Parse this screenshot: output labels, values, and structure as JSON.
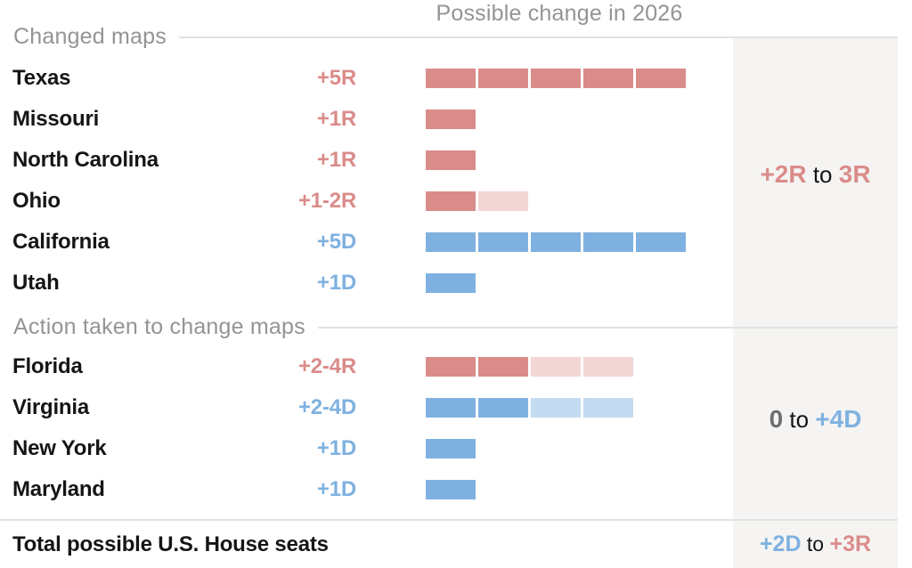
{
  "title": "Possible change in 2026",
  "colors": {
    "rep": "#da8c8a",
    "rep_light": "#f1d6d5",
    "dem": "#7fb1e0",
    "dem_light": "#c4dcf1",
    "header_gray": "#949494",
    "bold_gray": "#6f6f6f",
    "ink": "#151515",
    "panel_bg": "#f5f4f2",
    "rule": "#e2e2e2"
  },
  "chart_data": {
    "type": "bar",
    "title": "Possible change in 2026",
    "unit": "U.S. House seats",
    "legend_position": "none",
    "grid": false,
    "sections": [
      {
        "label": "Changed maps",
        "summary_parts": [
          {
            "text": "+2R",
            "style": "rep"
          },
          {
            "text": " to ",
            "style": "plain"
          },
          {
            "text": "3R",
            "style": "rep"
          }
        ],
        "rows": [
          {
            "state": "Texas",
            "value_label": "+5R",
            "party": "R",
            "min_seats": 5,
            "max_seats": 5,
            "solid_segments": 5,
            "light_segments": 0
          },
          {
            "state": "Missouri",
            "value_label": "+1R",
            "party": "R",
            "min_seats": 1,
            "max_seats": 1,
            "solid_segments": 1,
            "light_segments": 0
          },
          {
            "state": "North Carolina",
            "value_label": "+1R",
            "party": "R",
            "min_seats": 1,
            "max_seats": 1,
            "solid_segments": 1,
            "light_segments": 0
          },
          {
            "state": "Ohio",
            "value_label": "+1-2R",
            "party": "R",
            "min_seats": 1,
            "max_seats": 2,
            "solid_segments": 1,
            "light_segments": 1
          },
          {
            "state": "California",
            "value_label": "+5D",
            "party": "D",
            "min_seats": 5,
            "max_seats": 5,
            "solid_segments": 5,
            "light_segments": 0
          },
          {
            "state": "Utah",
            "value_label": "+1D",
            "party": "D",
            "min_seats": 1,
            "max_seats": 1,
            "solid_segments": 1,
            "light_segments": 0
          }
        ]
      },
      {
        "label": "Action taken to change maps",
        "summary_parts": [
          {
            "text": "0",
            "style": "gray"
          },
          {
            "text": " to ",
            "style": "plain"
          },
          {
            "text": "+4D",
            "style": "dem"
          }
        ],
        "rows": [
          {
            "state": "Florida",
            "value_label": "+2-4R",
            "party": "R",
            "min_seats": 2,
            "max_seats": 4,
            "solid_segments": 2,
            "light_segments": 2
          },
          {
            "state": "Virginia",
            "value_label": "+2-4D",
            "party": "D",
            "min_seats": 2,
            "max_seats": 4,
            "solid_segments": 2,
            "light_segments": 2
          },
          {
            "state": "New York",
            "value_label": "+1D",
            "party": "D",
            "min_seats": 1,
            "max_seats": 1,
            "solid_segments": 1,
            "light_segments": 0
          },
          {
            "state": "Maryland",
            "value_label": "+1D",
            "party": "D",
            "min_seats": 1,
            "max_seats": 1,
            "solid_segments": 1,
            "light_segments": 0
          }
        ]
      }
    ],
    "total": {
      "label": "Total possible U.S. House seats",
      "summary_parts": [
        {
          "text": "+2D",
          "style": "dem"
        },
        {
          "text": " to ",
          "style": "plain"
        },
        {
          "text": "+3R",
          "style": "rep"
        }
      ]
    }
  }
}
